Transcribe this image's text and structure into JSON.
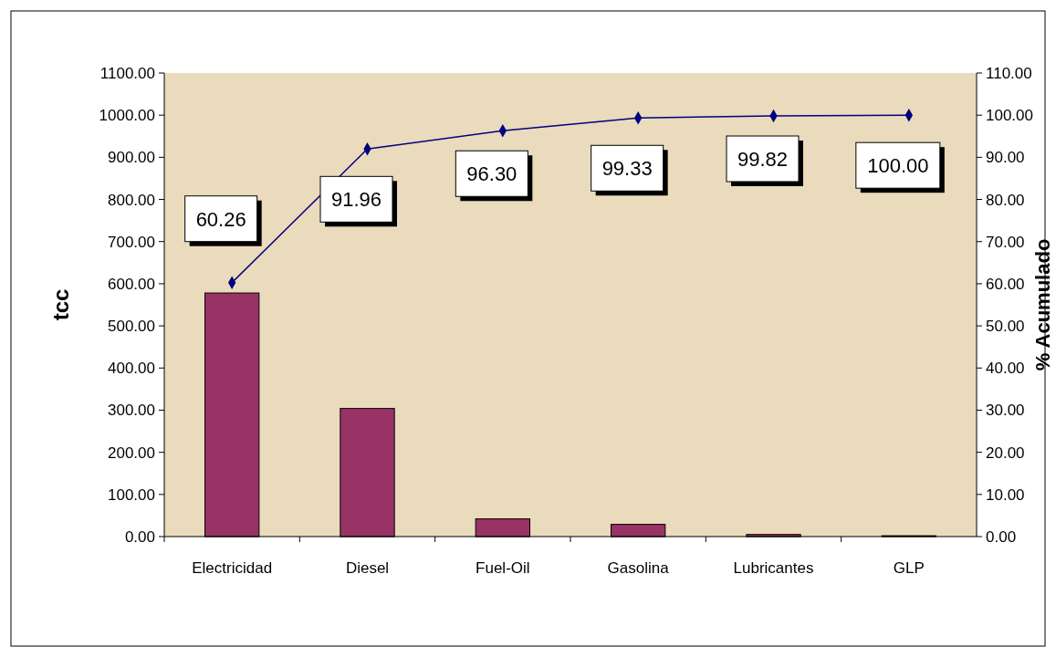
{
  "chart_data": {
    "type": "bar",
    "ylabel": "tcc",
    "y2label": "% Acumulado",
    "categories": [
      "Electricidad",
      "Diesel",
      "Fuel-Oil",
      "Gasolina",
      "Lubricantes",
      "GLP"
    ],
    "series": [
      {
        "color": "#993366",
        "values": [
          578,
          304,
          42,
          29,
          5,
          2
        ]
      },
      {
        "type": "line",
        "axis": "y2",
        "color": "#000080",
        "marker": "diamond",
        "values": [
          60.26,
          91.96,
          96.3,
          99.33,
          99.82,
          100.0
        ],
        "value_labels": [
          "60.26",
          "91.96",
          "96.30",
          "99.33",
          "99.82",
          "100.00"
        ]
      }
    ],
    "ylim": [
      0,
      1100
    ],
    "yticks": [
      {
        "value": 0,
        "label": "0.00"
      },
      {
        "value": 100,
        "label": "100.00"
      },
      {
        "value": 200,
        "label": "200.00"
      },
      {
        "value": 300,
        "label": "300.00"
      },
      {
        "value": 400,
        "label": "400.00"
      },
      {
        "value": 500,
        "label": "500.00"
      },
      {
        "value": 600,
        "label": "600.00"
      },
      {
        "value": 700,
        "label": "700.00"
      },
      {
        "value": 800,
        "label": "800.00"
      },
      {
        "value": 900,
        "label": "900.00"
      },
      {
        "value": 1000,
        "label": "1000.00"
      },
      {
        "value": 1100,
        "label": "1100.00"
      }
    ],
    "y2lim": [
      0,
      110
    ],
    "y2ticks": [
      {
        "value": 0,
        "label": "0.00"
      },
      {
        "value": 10,
        "label": "10.00"
      },
      {
        "value": 20,
        "label": "20.00"
      },
      {
        "value": 30,
        "label": "30.00"
      },
      {
        "value": 40,
        "label": "40.00"
      },
      {
        "value": 50,
        "label": "50.00"
      },
      {
        "value": 60,
        "label": "60.00"
      },
      {
        "value": 70,
        "label": "70.00"
      },
      {
        "value": 80,
        "label": "80.00"
      },
      {
        "value": 90,
        "label": "90.00"
      },
      {
        "value": 100,
        "label": "100.00"
      },
      {
        "value": 110,
        "label": "110.00"
      }
    ]
  }
}
